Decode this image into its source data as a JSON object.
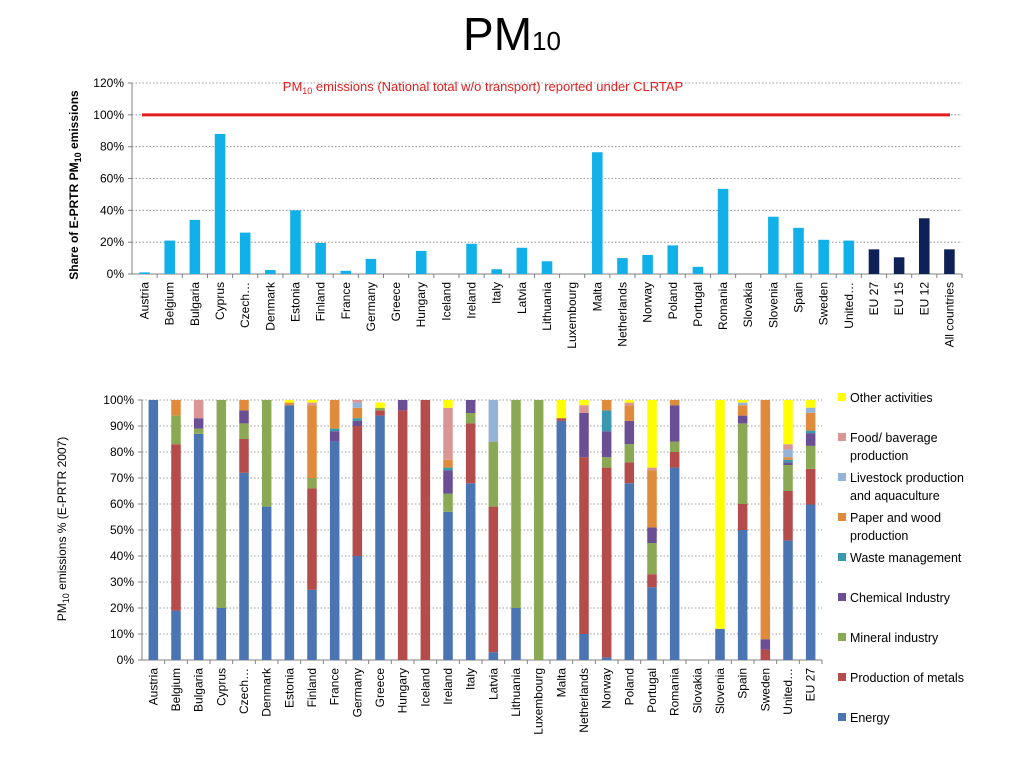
{
  "page": {
    "title_main": "PM",
    "title_sub": "10"
  },
  "chart_data": [
    {
      "type": "bar",
      "annotation": {
        "prefix": "PM",
        "sub": "10",
        "rest": " emissions (National total w/o transport) reported under CLRTAP",
        "value": 100,
        "color": "#e31d1d"
      },
      "ylabel": {
        "prefix": "Share of E-PRTR PM",
        "sub": "10",
        "rest": " emissions"
      },
      "ylim": [
        0,
        120
      ],
      "yticks": [
        0,
        20,
        40,
        60,
        80,
        100,
        120
      ],
      "ytick_labels": [
        "0%",
        "20%",
        "40%",
        "60%",
        "80%",
        "100%",
        "120%"
      ],
      "grid": "dotted horizontal",
      "categories": [
        "Austria",
        "Belgium",
        "Bulgaria",
        "Cyprus",
        "Czech…",
        "Denmark",
        "Estonia",
        "Finland",
        "France",
        "Germany",
        "Greece",
        "Hungary",
        "Iceland",
        "Ireland",
        "Italy",
        "Latvia",
        "Lithuania",
        "Luxembourg",
        "Malta",
        "Netherlands",
        "Norway",
        "Poland",
        "Portugal",
        "Romania",
        "Slovakia",
        "Slovenia",
        "Spain",
        "Sweden",
        "United…",
        "EU 27",
        "EU 15",
        "EU 12",
        "All countries"
      ],
      "values": [
        1,
        21,
        34,
        88,
        26,
        2.5,
        40,
        19.5,
        2,
        9.5,
        0,
        14.5,
        0,
        19,
        3,
        16.5,
        8,
        0,
        76.5,
        10,
        12,
        18,
        4.5,
        53.5,
        0,
        36,
        29,
        21.5,
        21,
        15.5,
        10.5,
        35,
        15.5
      ],
      "colors": {
        "country": "#12b0e8",
        "aggregate": "#0d2157"
      },
      "aggregate_categories": [
        "EU 27",
        "EU 15",
        "EU 12",
        "All countries"
      ]
    },
    {
      "type": "bar",
      "stacked": true,
      "ylabel": {
        "prefix": "PM",
        "sub": "10",
        "rest": " emissions % (E-PRTR 2007)"
      },
      "ylim": [
        0,
        100
      ],
      "yticks": [
        0,
        10,
        20,
        30,
        40,
        50,
        60,
        70,
        80,
        90,
        100
      ],
      "ytick_labels": [
        "0%",
        "10%",
        "20%",
        "30%",
        "40%",
        "50%",
        "60%",
        "70%",
        "80%",
        "90%",
        "100%"
      ],
      "grid": "dotted horizontal",
      "categories": [
        "Austria",
        "Belgium",
        "Bulgaria",
        "Cyprus",
        "Czech…",
        "Denmark",
        "Estonia",
        "Finland",
        "France",
        "Germany",
        "Greece",
        "Hungary",
        "Iceland",
        "Ireland",
        "Italy",
        "Latvia",
        "Lithuania",
        "Luxembourg",
        "Malta",
        "Netherlands",
        "Norway",
        "Poland",
        "Portugal",
        "Romania",
        "Slovakia",
        "Slovenia",
        "Spain",
        "Sweden",
        "United…",
        "EU 27"
      ],
      "series": [
        {
          "name": "Energy",
          "color": "#4a74b2",
          "values": [
            100,
            19,
            87,
            20,
            72,
            59,
            98,
            27,
            84,
            40,
            94,
            0,
            0,
            57,
            68,
            3,
            20,
            0,
            92,
            10,
            1,
            68,
            28,
            74,
            0,
            12,
            50,
            0,
            46,
            61
          ]
        },
        {
          "name": "Production of metals",
          "color": "#b34c4a",
          "values": [
            0,
            64,
            0,
            0,
            13,
            0,
            0,
            39,
            0,
            50,
            2,
            96,
            100,
            0,
            23,
            56,
            0,
            0,
            1,
            68,
            73,
            8,
            5,
            6,
            0,
            0,
            10,
            4,
            19,
            14
          ]
        },
        {
          "name": "Mineral industry",
          "color": "#8ba854",
          "values": [
            0,
            11,
            2,
            80,
            6,
            41,
            0,
            4,
            0,
            0,
            1,
            0,
            0,
            7,
            4,
            25,
            80,
            100,
            0,
            0,
            4,
            7,
            12,
            4,
            0,
            0,
            31,
            0,
            10,
            9
          ]
        },
        {
          "name": "Chemical Industry",
          "color": "#6b4f94",
          "values": [
            0,
            0,
            4,
            0,
            5,
            0,
            0,
            0,
            4,
            2,
            0,
            4,
            0,
            9,
            5,
            0,
            0,
            0,
            0,
            17,
            10,
            9,
            6,
            14,
            0,
            0,
            3,
            4,
            1,
            5
          ]
        },
        {
          "name": "Waste management",
          "color": "#3a97b0",
          "values": [
            0,
            0,
            0,
            0,
            0,
            0,
            0,
            0,
            1,
            1,
            0,
            0,
            0,
            1,
            0,
            0,
            0,
            0,
            0,
            0,
            8,
            0,
            0,
            0,
            0,
            0,
            0,
            0,
            1,
            1
          ]
        },
        {
          "name": "Paper and wood production",
          "color": "#e08a3c",
          "values": [
            0,
            6,
            0,
            0,
            4,
            0,
            1,
            28,
            11,
            4,
            0,
            0,
            0,
            3,
            0,
            0,
            0,
            0,
            0,
            0,
            4,
            6,
            22,
            2,
            0,
            0,
            4,
            92,
            1,
            7
          ]
        },
        {
          "name": "Livestock production and aquaculture",
          "color": "#95b3d7",
          "values": [
            0,
            0,
            0,
            0,
            0,
            0,
            0,
            0,
            0,
            2,
            0,
            0,
            0,
            0,
            0,
            16,
            0,
            0,
            0,
            0,
            0,
            0,
            0,
            0,
            0,
            0,
            1,
            0,
            3,
            2
          ]
        },
        {
          "name": "Food/ baverage production",
          "color": "#d99694",
          "values": [
            0,
            0,
            7,
            0,
            0,
            0,
            0,
            1,
            0,
            1,
            0,
            0,
            0,
            20,
            0,
            0,
            0,
            0,
            0,
            3,
            0,
            1,
            1,
            0,
            0,
            0,
            0,
            0,
            2,
            0
          ]
        },
        {
          "name": "Other activities",
          "color": "#ffff00",
          "values": [
            0,
            0,
            0,
            0,
            0,
            0,
            1,
            1,
            0,
            0,
            2,
            0,
            0,
            3,
            0,
            0,
            0,
            0,
            7,
            2,
            0,
            1,
            26,
            0,
            0,
            88,
            1,
            0,
            17,
            3
          ]
        }
      ]
    }
  ]
}
